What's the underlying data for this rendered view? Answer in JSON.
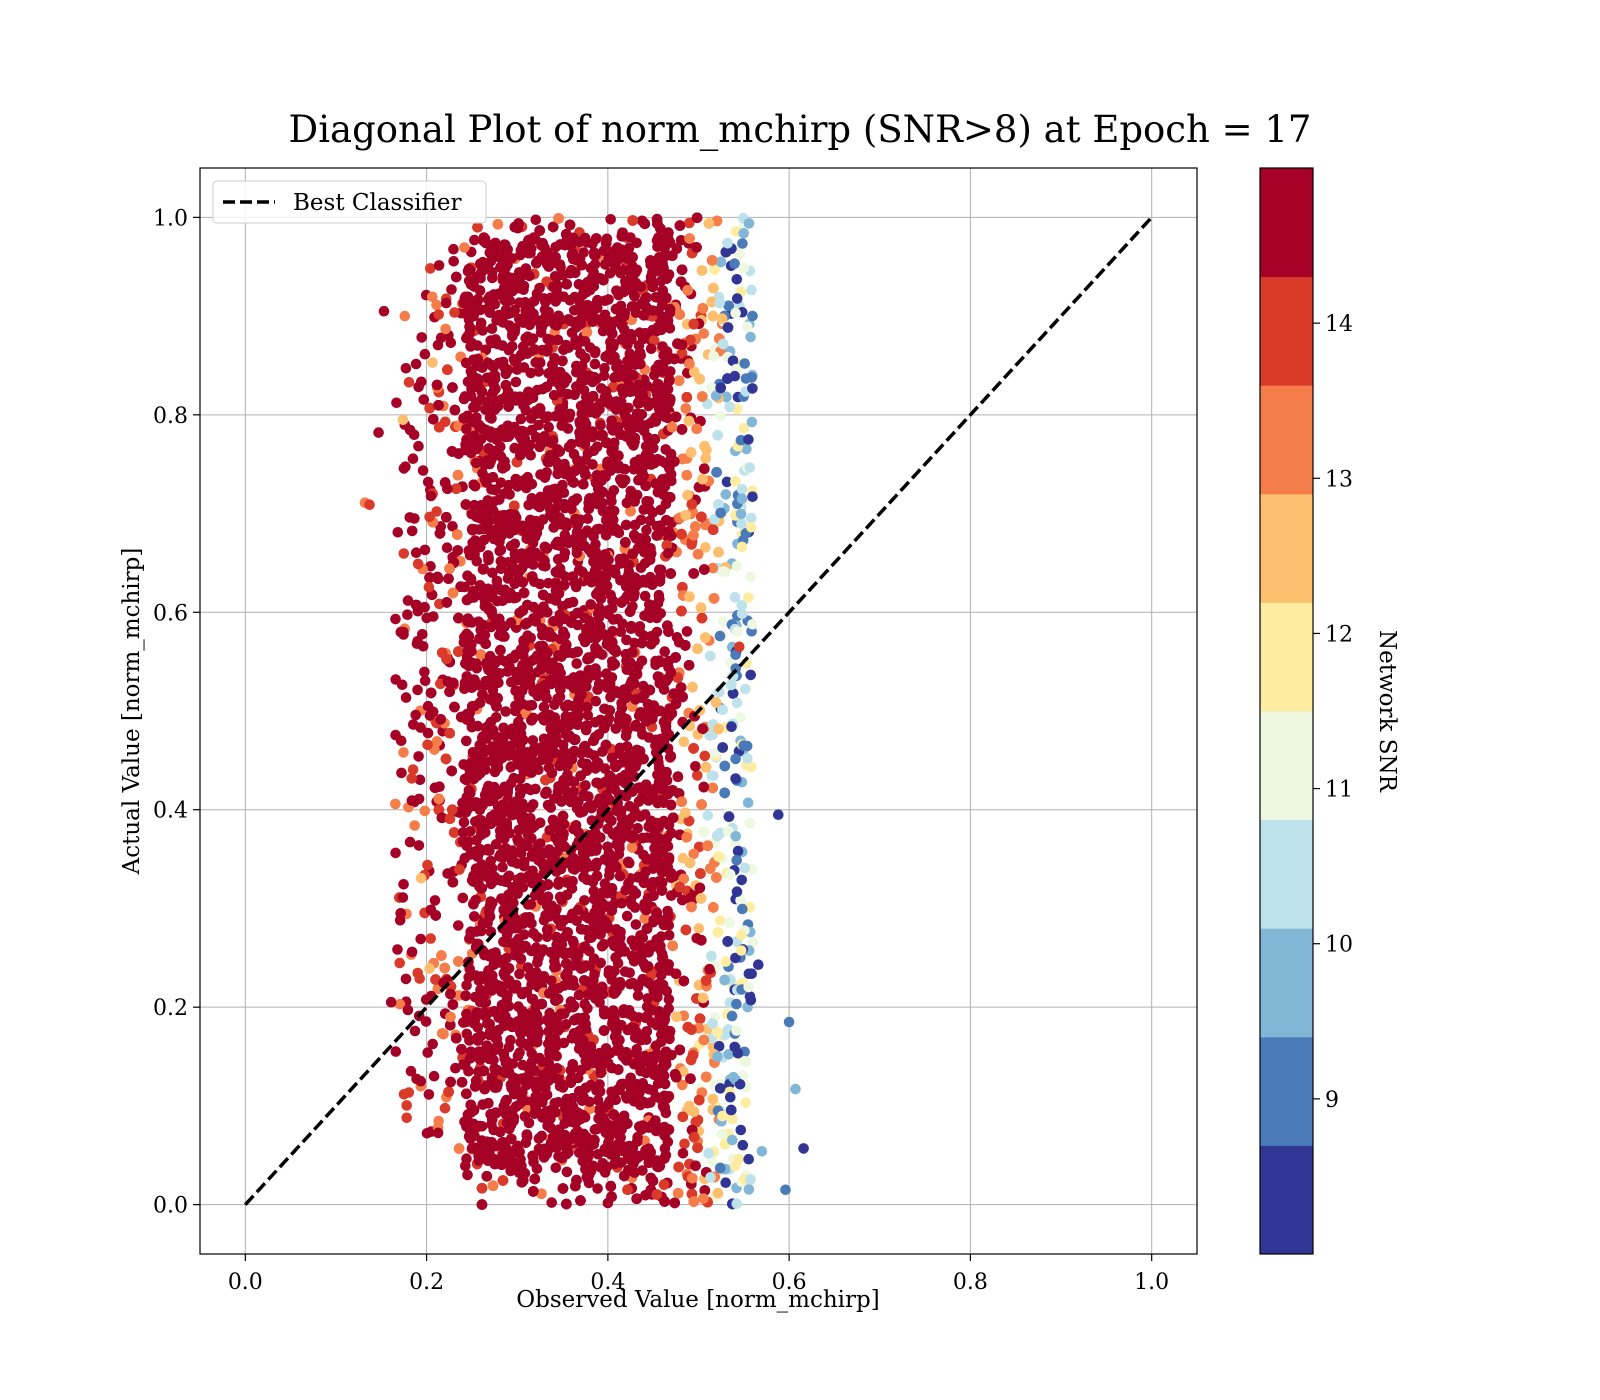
{
  "chart_data": {
    "type": "scatter",
    "title": "Diagonal Plot of norm_mchirp (SNR>8) at Epoch = 17",
    "xlabel": "Observed Value [norm_mchirp]",
    "ylabel": "Actual Value [norm_mchirp]",
    "xlim": [
      -0.05,
      1.05
    ],
    "ylim": [
      -0.05,
      1.05
    ],
    "xticks": [
      0.0,
      0.2,
      0.4,
      0.6,
      0.8,
      1.0
    ],
    "yticks": [
      0.0,
      0.2,
      0.4,
      0.6,
      0.8,
      1.0
    ],
    "xtick_labels": [
      "0.0",
      "0.2",
      "0.4",
      "0.6",
      "0.8",
      "1.0"
    ],
    "ytick_labels": [
      "0.0",
      "0.2",
      "0.4",
      "0.6",
      "0.8",
      "1.0"
    ],
    "grid": true,
    "legend": {
      "placement": "upper-left",
      "entries": [
        {
          "label": "Best Classifier",
          "style": "dashed",
          "color": "#000000"
        }
      ]
    },
    "reference_line": {
      "x": [
        0.0,
        1.0
      ],
      "y": [
        0.0,
        1.0
      ],
      "style": "dashed"
    },
    "colorbar": {
      "label": "Network SNR",
      "range": [
        8.0,
        15.0
      ],
      "ticks": [
        9,
        10,
        11,
        12,
        13,
        14
      ],
      "tick_labels": [
        "9",
        "10",
        "11",
        "12",
        "13",
        "14"
      ],
      "bins": [
        {
          "lo": 8.0,
          "hi": 8.7,
          "color": "#313695"
        },
        {
          "lo": 8.7,
          "hi": 9.4,
          "color": "#4a7ab8"
        },
        {
          "lo": 9.4,
          "hi": 10.1,
          "color": "#82b6d6"
        },
        {
          "lo": 10.1,
          "hi": 10.8,
          "color": "#bee2ec"
        },
        {
          "lo": 10.8,
          "hi": 11.5,
          "color": "#eef7e0"
        },
        {
          "lo": 11.5,
          "hi": 12.2,
          "color": "#feeda0"
        },
        {
          "lo": 12.2,
          "hi": 12.9,
          "color": "#fdbe6e"
        },
        {
          "lo": 12.9,
          "hi": 13.6,
          "color": "#f57d4a"
        },
        {
          "lo": 13.6,
          "hi": 14.3,
          "color": "#d93a2a"
        },
        {
          "lo": 14.3,
          "hi": 15.0,
          "color": "#a50026"
        }
      ]
    },
    "series": [
      {
        "description_of_points": "dense cloud",
        "x_range": [
          0.14,
          0.62
        ],
        "y_range": [
          0.0,
          1.0
        ],
        "core_x_range": [
          0.24,
          0.5
        ],
        "color_by": "Network SNR",
        "outliers": [
          {
            "x": 0.153,
            "y": 0.905,
            "snr": 14.6
          },
          {
            "x": 0.147,
            "y": 0.782,
            "snr": 14.6
          },
          {
            "x": 0.132,
            "y": 0.711,
            "snr": 13.2
          },
          {
            "x": 0.137,
            "y": 0.709,
            "snr": 13.8
          },
          {
            "x": 0.176,
            "y": 0.9,
            "snr": 13.0
          },
          {
            "x": 0.174,
            "y": 0.795,
            "snr": 12.4
          },
          {
            "x": 0.161,
            "y": 0.205,
            "snr": 14.6
          },
          {
            "x": 0.166,
            "y": 0.155,
            "snr": 14.6
          },
          {
            "x": 0.178,
            "y": 0.088,
            "snr": 13.8
          },
          {
            "x": 0.588,
            "y": 0.395,
            "snr": 8.3
          },
          {
            "x": 0.6,
            "y": 0.185,
            "snr": 9.0
          },
          {
            "x": 0.607,
            "y": 0.117,
            "snr": 9.8
          },
          {
            "x": 0.616,
            "y": 0.057,
            "snr": 8.3
          },
          {
            "x": 0.596,
            "y": 0.015,
            "snr": 9.0
          },
          {
            "x": 0.57,
            "y": 0.054,
            "snr": 9.8
          },
          {
            "x": 0.555,
            "y": 0.775,
            "snr": 8.3
          },
          {
            "x": 0.555,
            "y": 0.615,
            "snr": 11.8
          },
          {
            "x": 0.548,
            "y": 0.715,
            "snr": 9.8
          },
          {
            "x": 0.55,
            "y": 0.465,
            "snr": 9.0
          },
          {
            "x": 0.554,
            "y": 0.452,
            "snr": 10.5
          },
          {
            "x": 0.566,
            "y": 0.243,
            "snr": 8.3
          },
          {
            "x": 0.545,
            "y": 0.565,
            "snr": 14.0
          }
        ]
      }
    ]
  }
}
